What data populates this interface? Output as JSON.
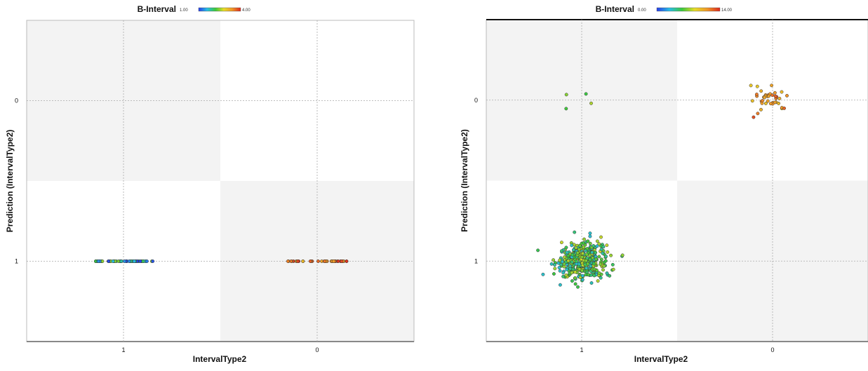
{
  "chart_data": [
    {
      "type": "scatter",
      "title": "B-Interval",
      "xlabel": "IntervalType2",
      "ylabel": "Prediction (IntervalType2)",
      "x_categories": [
        "1",
        "0"
      ],
      "y_categories": [
        "0",
        "1"
      ],
      "colorbar": {
        "min_label": "1.00",
        "max_label": "4.00",
        "min": 1,
        "max": 4
      },
      "jitter": false,
      "grid": true,
      "points_summary": [
        {
          "x": "1",
          "y": "1",
          "count": 60,
          "color_range": [
            1.0,
            2.5
          ]
        },
        {
          "x": "0",
          "y": "1",
          "count": 40,
          "color_range": [
            2.8,
            4.0
          ]
        }
      ]
    },
    {
      "type": "scatter",
      "title": "B-Interval",
      "xlabel": "IntervalType2",
      "ylabel": "Prediction (IntervalType2)",
      "x_categories": [
        "1",
        "0"
      ],
      "y_categories": [
        "0",
        "1"
      ],
      "colorbar": {
        "min_label": "0.00",
        "max_label": "14.00",
        "min": 0,
        "max": 14
      },
      "jitter": true,
      "grid": true,
      "points_summary": [
        {
          "x": "1",
          "y": "0",
          "count": 4,
          "color_range": [
            5,
            8
          ]
        },
        {
          "x": "0",
          "y": "0",
          "count": 40,
          "color_range": [
            9,
            13
          ]
        },
        {
          "x": "1",
          "y": "1",
          "count": 400,
          "color_range": [
            3,
            8
          ]
        }
      ]
    }
  ]
}
